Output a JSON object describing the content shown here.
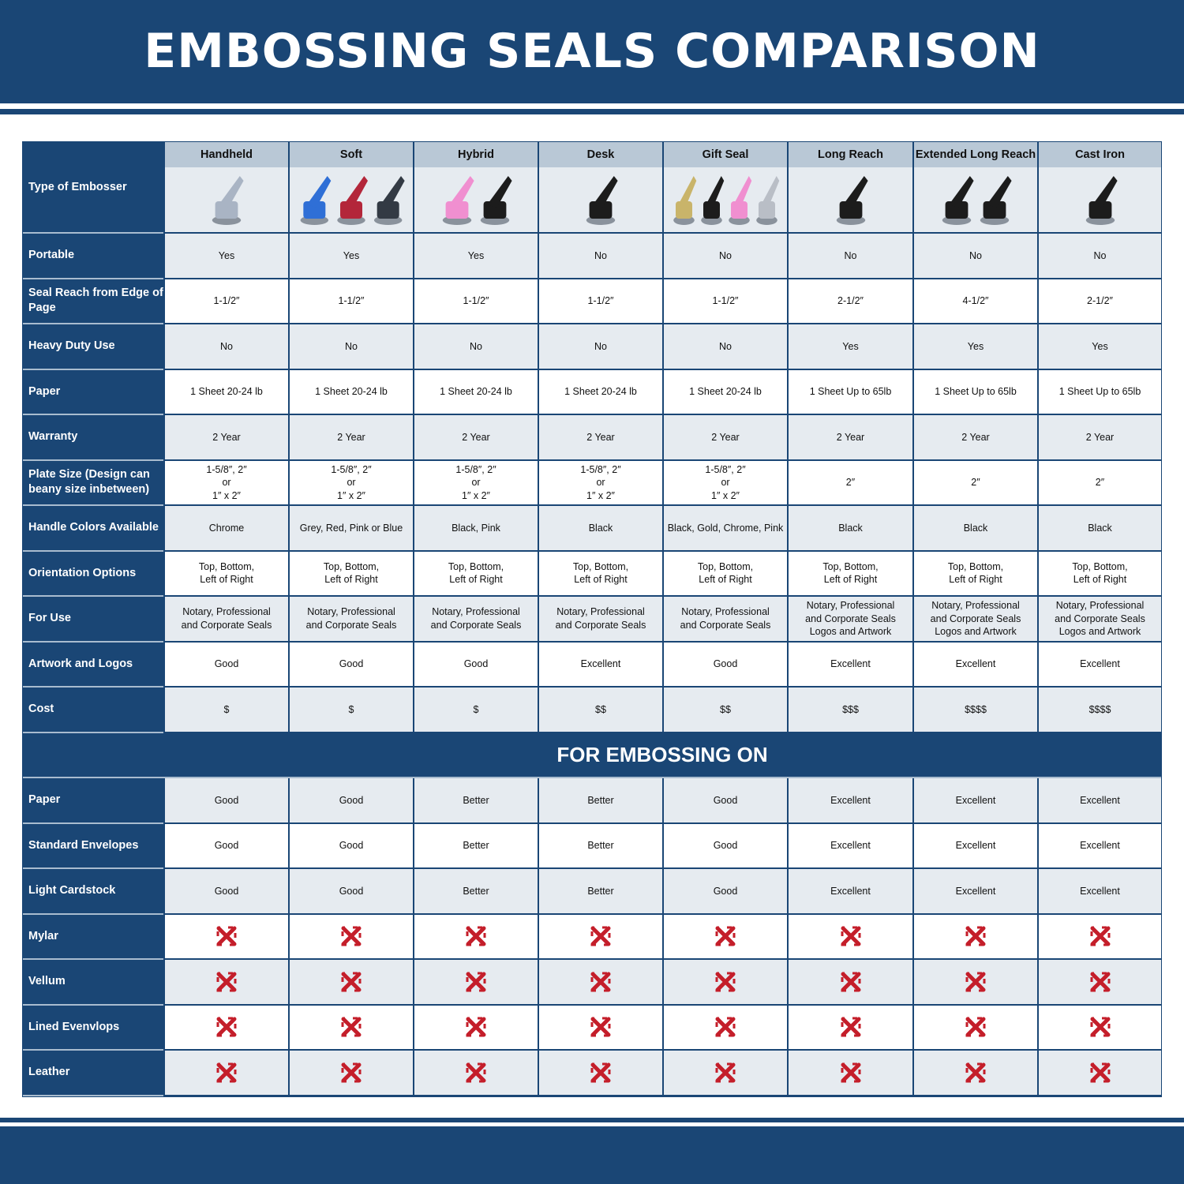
{
  "title": "EMBOSSING SEALS COMPARISON",
  "colors": {
    "navy": "#1a4675",
    "header_cell": "#b9c8d6",
    "light_row": "#e6ebf0",
    "cross_red": "#c41e2a"
  },
  "header_label": "Type of Embosser",
  "columns": [
    {
      "name": "Handheld",
      "image_colors": [
        "#a9b4c4"
      ]
    },
    {
      "name": "Soft",
      "image_colors": [
        "#2f6fd6",
        "#b3263a",
        "#333a44"
      ]
    },
    {
      "name": "Hybrid",
      "image_colors": [
        "#f08fd0",
        "#1c1c1c"
      ]
    },
    {
      "name": "Desk",
      "image_colors": [
        "#1c1c1c"
      ]
    },
    {
      "name": "Gift Seal",
      "image_colors": [
        "#c9b46a",
        "#1c1c1c",
        "#f08fd0",
        "#b9bec6"
      ]
    },
    {
      "name": "Long Reach",
      "image_colors": [
        "#1c1c1c"
      ]
    },
    {
      "name": "Extended Long Reach",
      "image_colors": [
        "#1c1c1c",
        "#1c1c1c"
      ]
    },
    {
      "name": "Cast Iron",
      "image_colors": [
        "#1c1c1c"
      ]
    }
  ],
  "rows": [
    {
      "label": "Portable",
      "values": [
        "Yes",
        "Yes",
        "Yes",
        "No",
        "No",
        "No",
        "No",
        "No"
      ]
    },
    {
      "label": "Seal Reach from Edge of Page",
      "values": [
        "1-1/2″",
        "1-1/2″",
        "1-1/2″",
        "1-1/2″",
        "1-1/2″",
        "2-1/2″",
        "4-1/2″",
        "2-1/2″"
      ]
    },
    {
      "label": "Heavy Duty Use",
      "values": [
        "No",
        "No",
        "No",
        "No",
        "No",
        "Yes",
        "Yes",
        "Yes"
      ]
    },
    {
      "label": "Paper",
      "values": [
        "1 Sheet 20-24 lb",
        "1 Sheet 20-24 lb",
        "1 Sheet 20-24 lb",
        "1 Sheet 20-24 lb",
        "1 Sheet 20-24 lb",
        "1 Sheet Up to 65lb",
        "1 Sheet Up to 65lb",
        "1 Sheet Up to 65lb"
      ]
    },
    {
      "label": "Warranty",
      "values": [
        "2 Year",
        "2 Year",
        "2 Year",
        "2 Year",
        "2 Year",
        "2 Year",
        "2 Year",
        "2 Year"
      ]
    },
    {
      "label": "Plate Size (Design can beany size inbetween)",
      "values": [
        "1-5/8″, 2″\nor\n1″ x 2″",
        "1-5/8″, 2″\nor\n1″ x 2″",
        "1-5/8″, 2″\nor\n1″ x 2″",
        "1-5/8″, 2″\nor\n1″ x 2″",
        "1-5/8″, 2″\nor\n1″ x 2″",
        "2″",
        "2″",
        "2″"
      ]
    },
    {
      "label": "Handle Colors Available",
      "values": [
        "Chrome",
        "Grey, Red, Pink or Blue",
        "Black, Pink",
        "Black",
        "Black, Gold, Chrome, Pink",
        "Black",
        "Black",
        "Black"
      ]
    },
    {
      "label": "Orientation Options",
      "values": [
        "Top, Bottom,\nLeft of Right",
        "Top, Bottom,\nLeft of Right",
        "Top, Bottom,\nLeft of Right",
        "Top, Bottom,\nLeft of Right",
        "Top, Bottom,\nLeft of Right",
        "Top, Bottom,\nLeft of Right",
        "Top, Bottom,\nLeft of Right",
        "Top, Bottom,\nLeft of Right"
      ]
    },
    {
      "label": "For Use",
      "values": [
        "Notary, Professional\nand Corporate Seals",
        "Notary, Professional\nand Corporate Seals",
        "Notary, Professional\nand Corporate Seals",
        "Notary, Professional\nand Corporate Seals",
        "Notary, Professional\nand Corporate Seals",
        "Notary, Professional\nand Corporate Seals\nLogos and Artwork",
        "Notary, Professional\nand Corporate Seals\nLogos and Artwork",
        "Notary, Professional\nand Corporate Seals\nLogos and Artwork"
      ]
    },
    {
      "label": "Artwork and Logos",
      "values": [
        "Good",
        "Good",
        "Good",
        "Excellent",
        "Good",
        "Excellent",
        "Excellent",
        "Excellent"
      ]
    },
    {
      "label": "Cost",
      "values": [
        "$",
        "$",
        "$",
        "$$",
        "$$",
        "$$$",
        "$$$$",
        "$$$$"
      ]
    }
  ],
  "section_title": "FOR EMBOSSING ON",
  "embossing_rows": [
    {
      "label": "Paper",
      "values": [
        "Good",
        "Good",
        "Better",
        "Better",
        "Good",
        "Excellent",
        "Excellent",
        "Excellent"
      ]
    },
    {
      "label": "Standard Envelopes",
      "values": [
        "Good",
        "Good",
        "Better",
        "Better",
        "Good",
        "Excellent",
        "Excellent",
        "Excellent"
      ]
    },
    {
      "label": "Light Cardstock",
      "values": [
        "Good",
        "Good",
        "Better",
        "Better",
        "Good",
        "Excellent",
        "Excellent",
        "Excellent"
      ]
    },
    {
      "label": "Mylar",
      "values": [
        "no",
        "no",
        "no",
        "no",
        "no",
        "no",
        "no",
        "no"
      ]
    },
    {
      "label": "Vellum",
      "values": [
        "no",
        "no",
        "no",
        "no",
        "no",
        "no",
        "no",
        "no"
      ]
    },
    {
      "label": "Lined Evenvlops",
      "values": [
        "no",
        "no",
        "no",
        "no",
        "no",
        "no",
        "no",
        "no"
      ]
    },
    {
      "label": "Leather",
      "values": [
        "no",
        "no",
        "no",
        "no",
        "no",
        "no",
        "no",
        "no"
      ]
    }
  ]
}
